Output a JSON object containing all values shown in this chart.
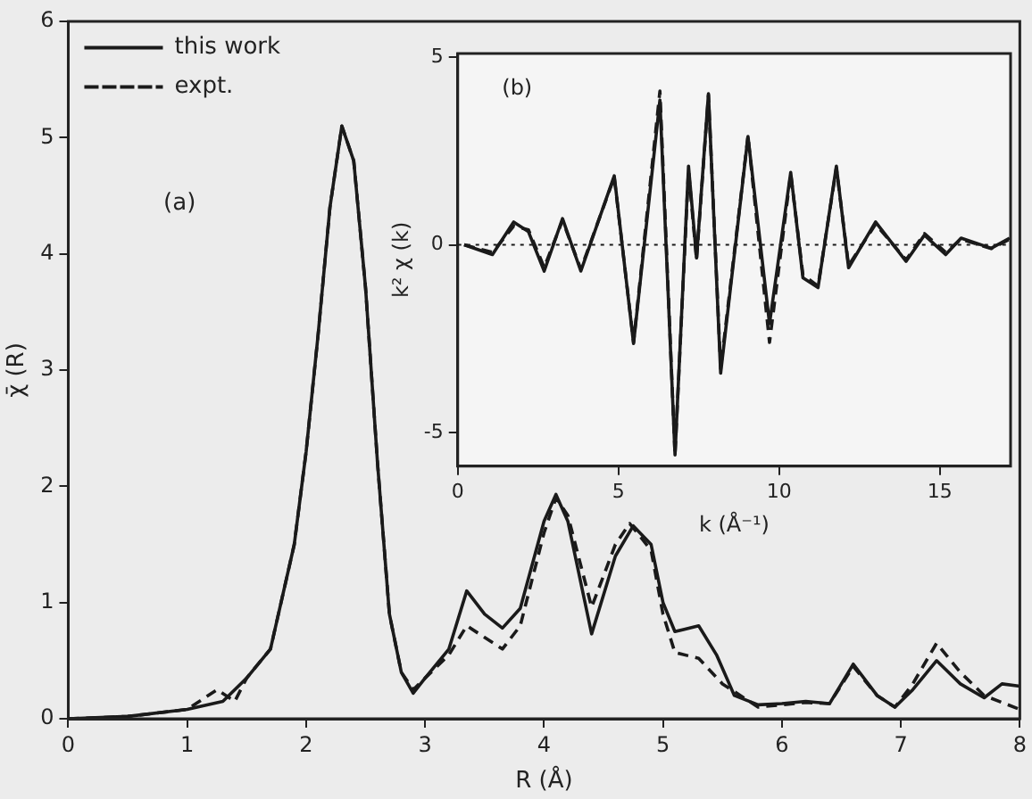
{
  "chart_data": [
    {
      "type": "line",
      "xlabel": "R (Å)",
      "ylabel": "χ̄ (R)",
      "xlim": [
        0,
        8
      ],
      "ylim": [
        0,
        6
      ],
      "xticks": [
        0,
        1,
        2,
        3,
        4,
        5,
        6,
        7,
        8
      ],
      "yticks": [
        0,
        1,
        2,
        3,
        4,
        5,
        6
      ],
      "grid": false,
      "legend": "top left",
      "marker": "none",
      "annotations": [
        "(a)"
      ],
      "series": [
        {
          "name": "this work",
          "color": "#1a1a1a",
          "line_style": "solid",
          "x": [
            0,
            0.5,
            1.0,
            1.3,
            1.5,
            1.7,
            1.9,
            2.0,
            2.1,
            2.2,
            2.3,
            2.4,
            2.5,
            2.6,
            2.7,
            2.8,
            2.9,
            3.0,
            3.2,
            3.35,
            3.5,
            3.65,
            3.8,
            4.0,
            4.1,
            4.2,
            4.4,
            4.6,
            4.75,
            4.9,
            5.0,
            5.1,
            5.3,
            5.45,
            5.6,
            5.8,
            6.0,
            6.2,
            6.4,
            6.6,
            6.8,
            6.95,
            7.1,
            7.3,
            7.5,
            7.7,
            7.85,
            8.0
          ],
          "values": [
            0,
            0.02,
            0.08,
            0.15,
            0.35,
            0.6,
            1.5,
            2.3,
            3.3,
            4.4,
            5.1,
            4.8,
            3.7,
            2.2,
            0.9,
            0.4,
            0.22,
            0.35,
            0.6,
            1.1,
            0.9,
            0.78,
            0.95,
            1.7,
            1.93,
            1.7,
            0.73,
            1.4,
            1.66,
            1.5,
            1.0,
            0.75,
            0.8,
            0.55,
            0.2,
            0.12,
            0.13,
            0.15,
            0.13,
            0.47,
            0.2,
            0.1,
            0.25,
            0.5,
            0.3,
            0.18,
            0.3,
            0.28
          ]
        },
        {
          "name": "expt.",
          "color": "#1a1a1a",
          "line_style": "dashed",
          "x": [
            0,
            0.5,
            1.0,
            1.25,
            1.4,
            1.5,
            1.7,
            1.9,
            2.0,
            2.1,
            2.2,
            2.3,
            2.4,
            2.5,
            2.6,
            2.7,
            2.8,
            2.9,
            3.0,
            3.2,
            3.35,
            3.5,
            3.65,
            3.8,
            4.0,
            4.1,
            4.2,
            4.4,
            4.6,
            4.72,
            4.9,
            5.0,
            5.1,
            5.3,
            5.5,
            5.8,
            6.0,
            6.2,
            6.4,
            6.6,
            6.8,
            6.95,
            7.1,
            7.3,
            7.5,
            7.7,
            8.0
          ],
          "values": [
            0,
            0.02,
            0.08,
            0.25,
            0.15,
            0.35,
            0.6,
            1.5,
            2.3,
            3.3,
            4.4,
            5.1,
            4.8,
            3.7,
            2.2,
            0.9,
            0.4,
            0.25,
            0.35,
            0.55,
            0.8,
            0.7,
            0.6,
            0.8,
            1.6,
            1.9,
            1.75,
            0.96,
            1.5,
            1.68,
            1.45,
            0.9,
            0.57,
            0.52,
            0.3,
            0.1,
            0.12,
            0.14,
            0.13,
            0.45,
            0.2,
            0.1,
            0.3,
            0.65,
            0.4,
            0.2,
            0.08
          ]
        }
      ]
    },
    {
      "type": "line",
      "xlabel": "k (Å⁻¹)",
      "ylabel": "k² χ (k)",
      "xlim": [
        0,
        17.2
      ],
      "ylim": [
        -5.9,
        5.1
      ],
      "xticks": [
        0,
        5,
        10,
        15
      ],
      "yticks": [
        -5,
        0,
        5
      ],
      "grid": false,
      "legend": false,
      "marker": "none",
      "annotations": [
        "(b)"
      ],
      "ref_lines": [
        {
          "axis": "y",
          "value": 0,
          "color": "#1a1a1a",
          "line_style": "dotted"
        }
      ],
      "series": [
        {
          "color": "#1a1a1a",
          "line_style": "solid",
          "x": [
            0.2,
            1.08,
            1.74,
            2.2,
            2.69,
            3.26,
            3.83,
            4.87,
            5.47,
            6.29,
            6.76,
            7.18,
            7.43,
            7.8,
            8.18,
            9.03,
            9.7,
            10.36,
            10.74,
            11.21,
            11.78,
            12.16,
            13.0,
            13.95,
            14.52,
            15.18,
            15.66,
            16.6,
            17.17
          ],
          "values": [
            0,
            -0.26,
            0.61,
            0.35,
            -0.7,
            0.7,
            -0.7,
            1.84,
            -2.63,
            3.86,
            -5.6,
            2.1,
            -0.35,
            4.03,
            -3.42,
            2.89,
            -2.1,
            1.93,
            -0.88,
            -1.14,
            2.1,
            -0.61,
            0.61,
            -0.44,
            0.26,
            -0.26,
            0.18,
            -0.09,
            0.18
          ]
        },
        {
          "color": "#1a1a1a",
          "line_style": "dashed",
          "x": [
            0.2,
            1.08,
            1.74,
            2.2,
            2.69,
            3.26,
            3.83,
            4.87,
            5.47,
            6.29,
            6.76,
            7.18,
            7.43,
            7.8,
            8.18,
            9.03,
            9.7,
            10.36,
            10.74,
            11.21,
            11.78,
            12.16,
            13.0,
            13.95,
            14.52,
            15.18,
            15.66,
            16.6,
            17.17
          ],
          "values": [
            0,
            -0.2,
            0.5,
            0.4,
            -0.6,
            0.65,
            -0.65,
            1.8,
            -2.6,
            4.1,
            -5.6,
            2.0,
            -0.4,
            4.0,
            -3.3,
            2.9,
            -2.6,
            1.9,
            -0.8,
            -1.1,
            2.05,
            -0.55,
            0.55,
            -0.4,
            0.3,
            -0.2,
            0.15,
            -0.1,
            0.15
          ]
        }
      ]
    }
  ]
}
